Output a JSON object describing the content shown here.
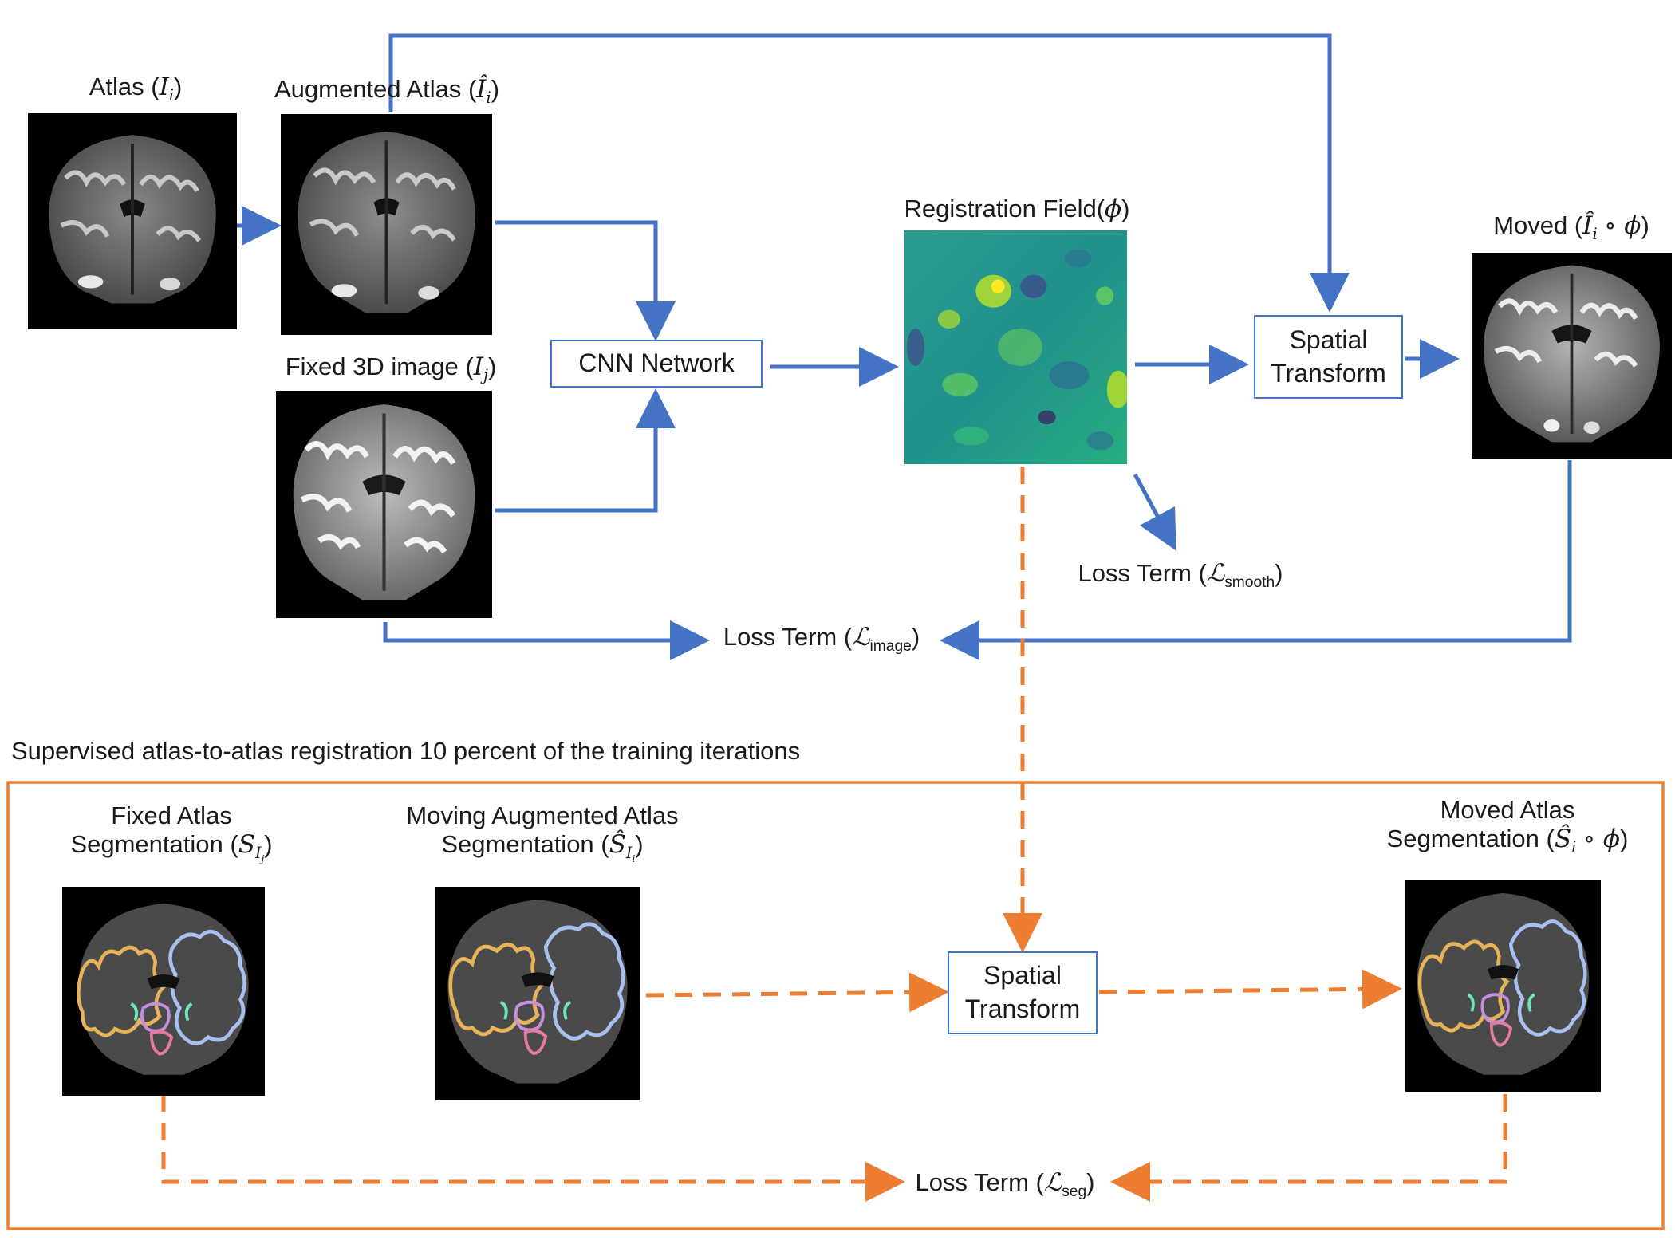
{
  "labels": {
    "atlas": "Atlas",
    "atlas_sym": "I",
    "atlas_sub": "i",
    "aug_atlas": "Augmented Atlas",
    "aug_sym": "Î",
    "aug_sub": "i",
    "fixed": "Fixed 3D image",
    "fixed_sym": "I",
    "fixed_sub": "j",
    "reg_field": "Registration Field",
    "phi": "ϕ",
    "moved": "Moved",
    "moved_sym": "Î",
    "moved_sub": "i",
    "moved_op": "∘ ϕ",
    "loss_smooth": "Loss Term",
    "loss_image": "Loss Term",
    "loss_seg": "Loss Term",
    "script_L": "ℒ",
    "smooth_sub": "smooth",
    "image_sub": "image",
    "seg_sub": "seg"
  },
  "boxes": {
    "cnn": "CNN Network",
    "spatial_line1": "Spatial",
    "spatial_line2": "Transform",
    "spatial2_line1": "Spatial",
    "spatial2_line2": "Transform"
  },
  "supervised": {
    "title": "Supervised atlas-to-atlas registration 10 percent of the training iterations",
    "fixed_seg_line1": "Fixed Atlas",
    "fixed_seg_line2": "Segmentation",
    "fixed_seg_sym": "S",
    "fixed_seg_sub": "I",
    "fixed_seg_subsub": "j",
    "moving_seg_line1": "Moving Augmented Atlas",
    "moving_seg_line2": "Segmentation",
    "moving_seg_sym": "Ŝ",
    "moving_seg_sub": "I",
    "moving_seg_subsub": "i",
    "moved_seg_line1": "Moved Atlas",
    "moved_seg_line2": "Segmentation",
    "moved_seg_sym": "Ŝ",
    "moved_seg_sub": "i",
    "moved_seg_op": "∘ ϕ"
  },
  "colors": {
    "blue_flow": "#4472c4",
    "orange_flow": "#ed7d31",
    "box_border": "#4472c4",
    "panel_border": "#ed7d31"
  }
}
